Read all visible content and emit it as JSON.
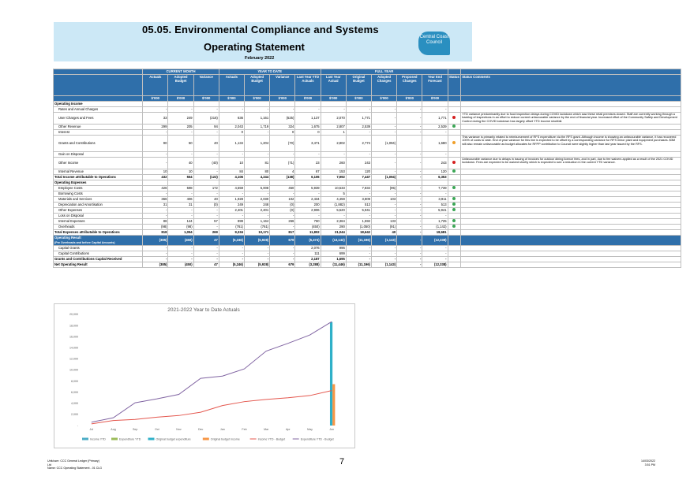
{
  "header": {
    "title": "05.05.  Environmental Compliance and Systems",
    "subtitle": "Operating Statement",
    "month": "February 2022",
    "logo_text": "Central Coast Council"
  },
  "table": {
    "groups": [
      "CURRENT MONTH",
      "YEAR TO DATE",
      "FULL YEAR"
    ],
    "columns": [
      "Actuals",
      "Adopted Budget",
      "Variance",
      "Actuals",
      "Adopted Budget",
      "Variance",
      "Last Year YTD Actuals",
      "Last Year Actual",
      "Original Budget",
      "Adopted Changes",
      "Proposed Changes",
      "Year End Forecast",
      "Status",
      "Status Comments"
    ],
    "units": [
      "$'000",
      "$'000",
      "$'000",
      "$'000",
      "$'000",
      "$'000",
      "$'000",
      "$'000",
      "$'000",
      "$'000",
      "$'000",
      "$'000"
    ],
    "rows": [
      {
        "label": "Operating Income",
        "type": "sec",
        "v": [
          "",
          "",
          "",
          "",
          "",
          "",
          "",
          "",
          "",
          "",
          "",
          ""
        ],
        "status": "",
        "comment": ""
      },
      {
        "label": "Rates and Annual Charges",
        "type": "row",
        "v": [
          "-",
          "-",
          "-",
          "-",
          "-",
          "-",
          "-",
          "-",
          "-",
          "-",
          "-",
          "-"
        ],
        "status": "",
        "comment": ""
      },
      {
        "label": "User Charges and Fees",
        "type": "tall",
        "v": [
          "33",
          "249",
          "(216)",
          "636",
          "1,161",
          "(525)",
          "1,137",
          "2,070",
          "1,771",
          "-",
          "-",
          "1,771"
        ],
        "status": "red",
        "comment": "YTD variance predominantly due to food inspection delays during COVID lockdown which saw these retail premises closed. Staff are currently working through a backlog of inspections in an effort to reduce current unfavourable variance by the end of financial year. Increased effort of the Community Safety and Development Control during the COVID lockdown has largely offset YTD income shortfall."
      },
      {
        "label": "Other Revenue",
        "type": "row",
        "v": [
          "299",
          "205",
          "94",
          "2,043",
          "1,719",
          "324",
          "1,675",
          "2,807",
          "2,539",
          "-",
          "-",
          "2,539"
        ],
        "status": "green",
        "comment": ""
      },
      {
        "label": "Interest",
        "type": "row",
        "v": [
          "-",
          "-",
          "-",
          "0",
          "-",
          "0",
          "0",
          "1",
          "-",
          "-",
          "-",
          "-"
        ],
        "status": "",
        "comment": ""
      },
      {
        "label": "Grants and Contributions",
        "type": "tall2",
        "v": [
          "90",
          "50",
          "40",
          "1,134",
          "1,204",
          "(70)",
          "3,471",
          "2,802",
          "2,774",
          "(1,094)",
          "-",
          "1,680"
        ],
        "status": "amber",
        "comment": "This variance is primarily related to reimbursement of RFS expenditure via the RFS grant. Although income is showing an unfavourable variance, it has recovered 100% of costs to date. End of year variance for this line is expected to be offset by a corresponding variance for RFS minor plant and equipment purchases. $3M will also remain unfavourable as budget allocates for RFPP contribution to Council were slightly higher than last year issued by the RFS."
      },
      {
        "label": "Gain on Disposal",
        "type": "row",
        "v": [
          "-",
          "-",
          "-",
          "-",
          "-",
          "-",
          "-",
          "-",
          "-",
          "-",
          "-",
          "-"
        ],
        "status": "",
        "comment": ""
      },
      {
        "label": "Other Income",
        "type": "tall",
        "v": [
          "-",
          "40",
          "(40)",
          "10",
          "81",
          "(71)",
          "23",
          "260",
          "243",
          "-",
          "-",
          "243"
        ],
        "status": "red",
        "comment": "Unfavourable variance due to delays in issuing of invoices for outdoor dining licence fees, and in part, due to fee waivers applied as a result of the 2021 COVID lockdown. Fees are expected to be waived shortly which is expected to see a reduction in the current YTD variance."
      },
      {
        "label": "Internal Revenue",
        "type": "row",
        "v": [
          "10",
          "10",
          "-",
          "84",
          "80",
          "4",
          "67",
          "153",
          "120",
          "-",
          "-",
          "120"
        ],
        "status": "green",
        "comment": ""
      },
      {
        "label": "Total Income attributable to Operations",
        "type": "tot",
        "v": [
          "432",
          "554",
          "(122)",
          "4,106",
          "4,244",
          "(138)",
          "6,106",
          "7,992",
          "7,447",
          "(1,094)",
          "-",
          "6,353"
        ],
        "status": "",
        "comment": ""
      },
      {
        "label": "Operating Expenses",
        "type": "sec",
        "v": [
          "",
          "",
          "",
          "",
          "",
          "",
          "",
          "",
          "",
          "",
          "",
          ""
        ],
        "status": "",
        "comment": ""
      },
      {
        "label": "Employee Costs",
        "type": "row",
        "v": [
          "426",
          "598",
          "172",
          "4,559",
          "5,008",
          "450",
          "5,939",
          "10,533",
          "7,834",
          "(95)",
          "-",
          "7,739"
        ],
        "status": "green",
        "comment": ""
      },
      {
        "label": "Borrowing Costs",
        "type": "row",
        "v": [
          "-",
          "-",
          "-",
          "-",
          "-",
          "-",
          "-",
          "5",
          "-",
          "-",
          "-",
          "-"
        ],
        "status": "",
        "comment": ""
      },
      {
        "label": "Materials and Services",
        "type": "row",
        "v": [
          "366",
          "406",
          "40",
          "1,928",
          "2,030",
          "102",
          "2,434",
          "4,459",
          "3,809",
          "103",
          "-",
          "3,911"
        ],
        "status": "green",
        "comment": ""
      },
      {
        "label": "Depreciation and Amortisation",
        "type": "row",
        "v": [
          "31",
          "31",
          "(0)",
          "249",
          "248",
          "(0)",
          "200",
          "(1,882)",
          "513",
          "-",
          "-",
          "513"
        ],
        "status": "green",
        "comment": ""
      },
      {
        "label": "Other Expenses",
        "type": "row",
        "v": [
          "-",
          "-",
          "-",
          "2,401",
          "2,401",
          "(0)",
          "2,906",
          "5,520",
          "5,941",
          "-",
          "-",
          "5,941"
        ],
        "status": "green",
        "comment": ""
      },
      {
        "label": "Loss on Disposal",
        "type": "row",
        "v": [
          "-",
          "-",
          "-",
          "-",
          "-",
          "-",
          "-",
          "-",
          "-",
          "-",
          "-",
          "-"
        ],
        "status": "",
        "comment": ""
      },
      {
        "label": "Internal Expenses",
        "type": "row",
        "v": [
          "88",
          "144",
          "57",
          "899",
          "1,164",
          "266",
          "760",
          "2,364",
          "1,592",
          "133",
          "-",
          "1,725"
        ],
        "status": "green",
        "comment": ""
      },
      {
        "label": "Overheads",
        "type": "row",
        "v": [
          "(98)",
          "(98)",
          "-",
          "(761)",
          "(761)",
          "-",
          "(450)",
          "290",
          "(1,050)",
          "(91)",
          "-",
          "(1,142)"
        ],
        "status": "green",
        "comment": ""
      },
      {
        "label": "Total Expenses attributable to Operations",
        "type": "tot",
        "v": [
          "818",
          "1,054",
          "269",
          "9,334",
          "10,171",
          "817",
          "11,802",
          "21,044",
          "18,642",
          "40",
          "-",
          "18,681"
        ],
        "status": "",
        "comment": ""
      },
      {
        "label": "Operating Result",
        "sublabel": "(Pre Overheads and before Capital Amounts)",
        "type": "op",
        "v": [
          "(385)",
          "(450)",
          "47",
          "(5,246)",
          "(5,928)",
          "679",
          "(5,474)",
          "(13,142)",
          "(11,196)",
          "(1,143)",
          "-",
          "(12,338)"
        ],
        "status": "",
        "comment": ""
      },
      {
        "label": "Capital Grants",
        "type": "row",
        "v": [
          "-",
          "-",
          "-",
          "-",
          "-",
          "-",
          "2,076",
          "996",
          "-",
          "-",
          "-",
          "-"
        ],
        "status": "",
        "comment": ""
      },
      {
        "label": "Capital Contributions",
        "type": "row",
        "v": [
          "-",
          "-",
          "-",
          "-",
          "-",
          "-",
          "111",
          "699",
          "-",
          "-",
          "-",
          "-"
        ],
        "status": "",
        "comment": ""
      },
      {
        "label": "Grants and Contributions Capital Received",
        "type": "tot",
        "v": [
          "-",
          "-",
          "-",
          "-",
          "-",
          "-",
          "2,187",
          "1,695",
          "-",
          "-",
          "-",
          "-"
        ],
        "status": "",
        "comment": ""
      },
      {
        "label": "Net Operating Result",
        "type": "tot",
        "v": [
          "(385)",
          "(450)",
          "47",
          "(5,246)",
          "(5,928)",
          "679",
          "(3,288)",
          "(11,446)",
          "(11,196)",
          "(1,143)",
          "-",
          "(12,338)"
        ],
        "status": "",
        "comment": ""
      }
    ]
  },
  "chart_data": {
    "type": "line",
    "title": "2021-2022 Year to Date Actuals",
    "categories": [
      "Jul",
      "Aug",
      "Sep",
      "Oct",
      "Nov",
      "Dec",
      "Jan",
      "Feb",
      "Mar",
      "Apr",
      "May",
      "Jun"
    ],
    "ylim": [
      0,
      20000
    ],
    "yticks": [
      "-",
      "2,000",
      "4,000",
      "6,000",
      "8,000",
      "10,000",
      "12,000",
      "14,000",
      "16,000",
      "18,000",
      "20,000"
    ],
    "ytick_values": [
      0,
      2000,
      4000,
      6000,
      8000,
      10000,
      12000,
      14000,
      16000,
      18000,
      20000
    ],
    "series": [
      {
        "name": "Income YTD",
        "kind": "bar",
        "color": "#4bacc6",
        "values": [
          null,
          null,
          null,
          null,
          null,
          null,
          null,
          null,
          null,
          null,
          null,
          null
        ]
      },
      {
        "name": "Expenditure YTD",
        "kind": "bar",
        "color": "#9bbb59",
        "values": [
          null,
          null,
          null,
          null,
          null,
          null,
          null,
          null,
          null,
          null,
          null,
          null
        ]
      },
      {
        "name": "Original budget expenditure",
        "kind": "bar",
        "color": "#2fb0c8",
        "values": [
          null,
          null,
          null,
          null,
          null,
          null,
          null,
          null,
          null,
          null,
          null,
          18642
        ]
      },
      {
        "name": "Original budget income",
        "kind": "bar",
        "color": "#f79646",
        "values": [
          null,
          null,
          null,
          null,
          null,
          null,
          null,
          null,
          null,
          null,
          null,
          7447
        ]
      },
      {
        "name": "Income YTD - Budget",
        "kind": "line",
        "color": "#e4574e",
        "values": [
          300,
          900,
          1100,
          1500,
          1800,
          2400,
          3600,
          4300,
          4700,
          5000,
          5400,
          6300
        ]
      },
      {
        "name": "Expenditure YTD - Budget",
        "kind": "line",
        "color": "#8064a2",
        "values": [
          600,
          1400,
          4100,
          4800,
          5600,
          8500,
          8900,
          10200,
          13400,
          14800,
          16300,
          18700
        ]
      }
    ]
  },
  "footer": {
    "left_lines": [
      "Unit/user: CCC General Ledger (Primary)",
      "Ltd",
      "Name: CCC Operating Statement - 01 CLG"
    ],
    "page": "7",
    "right_lines": [
      "14/03/2022",
      "3:51 PM"
    ]
  }
}
